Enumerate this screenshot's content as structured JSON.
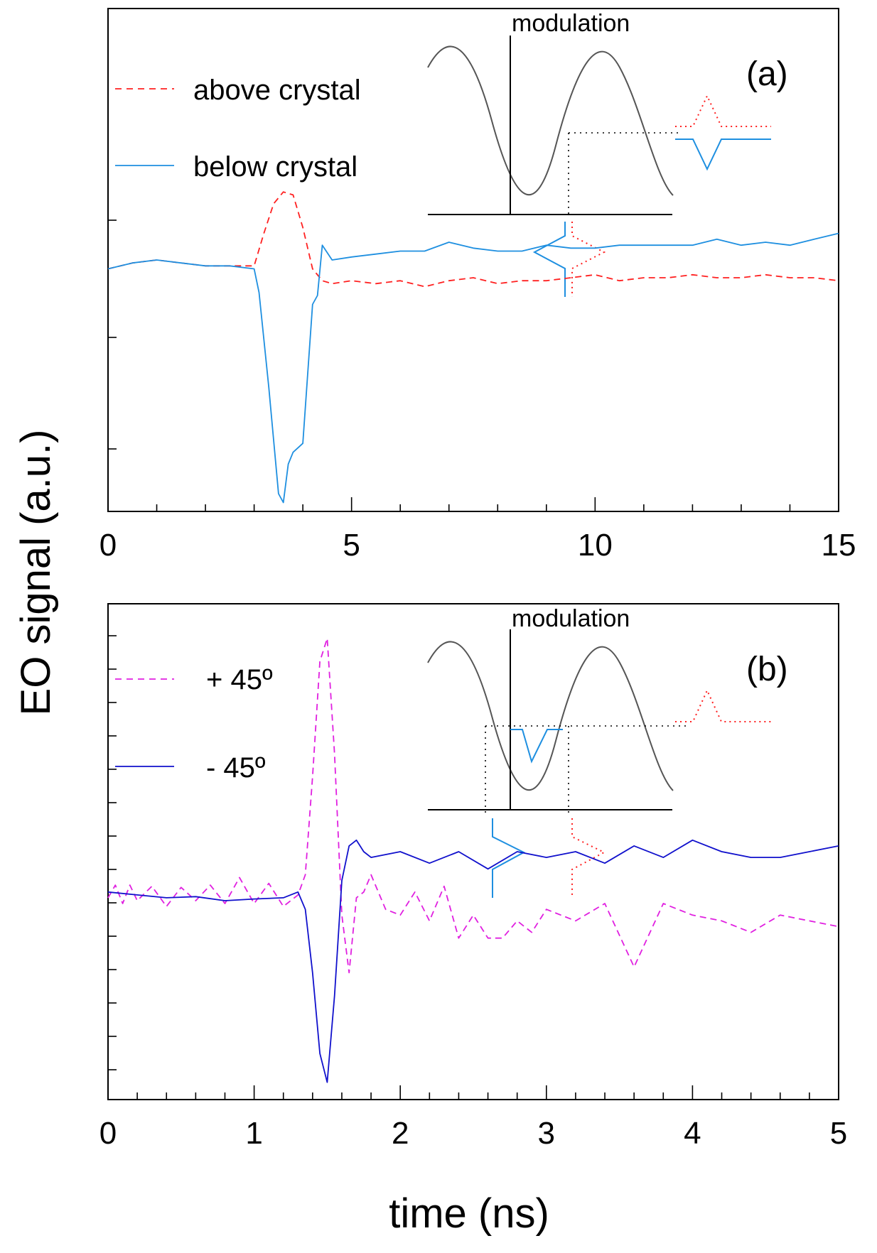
{
  "ylabel": "EO signal (a.u.)",
  "xlabel": "time (ns)",
  "chart_data": [
    {
      "type": "line",
      "panel_label": "(a)",
      "xlim": [
        0,
        15
      ],
      "x_ticks": [
        "0",
        "5",
        "10",
        "15"
      ],
      "inset": {
        "title": "modulation",
        "pulse_shapes": [
          {
            "name": "above crystal",
            "shape": "positive peak",
            "color": "#ff2020"
          },
          {
            "name": "below crystal",
            "shape": "negative dip",
            "color": "#1e8fe0"
          }
        ]
      },
      "series": [
        {
          "name": "above crystal",
          "style": "dashed",
          "color": "#ff2020",
          "x": [
            0.0,
            0.5,
            1.0,
            1.5,
            2.0,
            2.5,
            3.0,
            3.2,
            3.4,
            3.6,
            3.8,
            4.0,
            4.2,
            4.4,
            4.6,
            5.0,
            5.5,
            6.0,
            6.5,
            7.0,
            7.5,
            8.0,
            8.5,
            9.0,
            9.5,
            10.0,
            10.5,
            11.0,
            11.5,
            12.0,
            12.5,
            13.0,
            13.5,
            14.0,
            14.5,
            15.0
          ],
          "y": [
            0.02,
            0.04,
            0.05,
            0.04,
            0.03,
            0.03,
            0.03,
            0.14,
            0.24,
            0.28,
            0.27,
            0.16,
            0.02,
            -0.02,
            -0.03,
            -0.02,
            -0.03,
            -0.02,
            -0.04,
            -0.02,
            -0.01,
            -0.03,
            -0.02,
            -0.02,
            -0.01,
            0.0,
            -0.02,
            -0.01,
            -0.01,
            0.0,
            -0.01,
            -0.01,
            0.0,
            -0.01,
            -0.01,
            -0.02
          ]
        },
        {
          "name": "below crystal",
          "style": "solid",
          "color": "#1e8fe0",
          "x": [
            0.0,
            0.5,
            1.0,
            1.5,
            2.0,
            2.5,
            3.0,
            3.1,
            3.3,
            3.5,
            3.6,
            3.7,
            3.8,
            4.0,
            4.2,
            4.3,
            4.4,
            4.6,
            5.0,
            5.5,
            6.0,
            6.5,
            7.0,
            7.5,
            8.0,
            8.5,
            9.0,
            9.5,
            10.0,
            10.5,
            11.0,
            11.5,
            12.0,
            12.5,
            13.0,
            13.5,
            14.0,
            14.5,
            15.0
          ],
          "y": [
            0.02,
            0.04,
            0.05,
            0.04,
            0.03,
            0.03,
            0.02,
            -0.06,
            -0.38,
            -0.74,
            -0.77,
            -0.64,
            -0.6,
            -0.57,
            -0.1,
            -0.07,
            0.1,
            0.05,
            0.06,
            0.07,
            0.08,
            0.08,
            0.11,
            0.09,
            0.08,
            0.08,
            0.1,
            0.09,
            0.09,
            0.1,
            0.1,
            0.1,
            0.1,
            0.12,
            0.1,
            0.11,
            0.1,
            0.12,
            0.14
          ]
        }
      ]
    },
    {
      "type": "line",
      "panel_label": "(b)",
      "xlim": [
        0,
        5
      ],
      "x_ticks": [
        "0",
        "1",
        "2",
        "3",
        "4",
        "5"
      ],
      "inset": {
        "title": "modulation",
        "pulse_shapes": [
          {
            "name": "+ 45º",
            "shape": "positive peak",
            "color": "#ff2020"
          },
          {
            "name": "- 45º",
            "shape": "negative dip",
            "color": "#1e8fe0"
          }
        ]
      },
      "series": [
        {
          "name": "+ 45º",
          "style": "dashed",
          "color": "#e020e0",
          "x": [
            0.0,
            0.05,
            0.1,
            0.15,
            0.2,
            0.3,
            0.4,
            0.5,
            0.6,
            0.7,
            0.8,
            0.9,
            1.0,
            1.1,
            1.2,
            1.3,
            1.35,
            1.4,
            1.45,
            1.5,
            1.55,
            1.6,
            1.65,
            1.7,
            1.75,
            1.8,
            1.9,
            2.0,
            2.1,
            2.2,
            2.3,
            2.4,
            2.5,
            2.6,
            2.7,
            2.8,
            2.9,
            3.0,
            3.2,
            3.4,
            3.6,
            3.8,
            4.0,
            4.2,
            4.4,
            4.6,
            4.8,
            5.0
          ],
          "y": [
            0.5,
            0.72,
            0.4,
            0.72,
            0.45,
            0.7,
            0.35,
            0.68,
            0.45,
            0.72,
            0.4,
            0.85,
            0.4,
            0.75,
            0.35,
            0.55,
            0.9,
            2.6,
            4.6,
            5.0,
            3.0,
            0.2,
            -0.8,
            0.5,
            0.6,
            0.9,
            0.3,
            0.2,
            0.6,
            0.1,
            0.7,
            -0.2,
            0.2,
            -0.2,
            -0.2,
            0.1,
            -0.1,
            0.3,
            0.1,
            0.4,
            -0.7,
            0.4,
            0.2,
            0.1,
            -0.1,
            0.2,
            0.1,
            0.0
          ]
        },
        {
          "name": "- 45º",
          "style": "solid",
          "color": "#1010cc",
          "x": [
            0.0,
            0.2,
            0.4,
            0.6,
            0.8,
            1.0,
            1.2,
            1.3,
            1.35,
            1.4,
            1.45,
            1.5,
            1.55,
            1.6,
            1.65,
            1.7,
            1.75,
            1.8,
            2.0,
            2.2,
            2.4,
            2.6,
            2.8,
            3.0,
            3.2,
            3.4,
            3.6,
            3.8,
            4.0,
            4.2,
            4.4,
            4.6,
            4.8,
            5.0
          ],
          "y": [
            0.6,
            0.55,
            0.5,
            0.52,
            0.45,
            0.48,
            0.5,
            0.6,
            0.3,
            -0.8,
            -2.2,
            -2.7,
            -1.2,
            0.8,
            1.4,
            1.5,
            1.3,
            1.2,
            1.3,
            1.1,
            1.3,
            1.0,
            1.3,
            1.2,
            1.3,
            1.1,
            1.4,
            1.2,
            1.5,
            1.3,
            1.2,
            1.2,
            1.3,
            1.4
          ]
        }
      ]
    }
  ]
}
